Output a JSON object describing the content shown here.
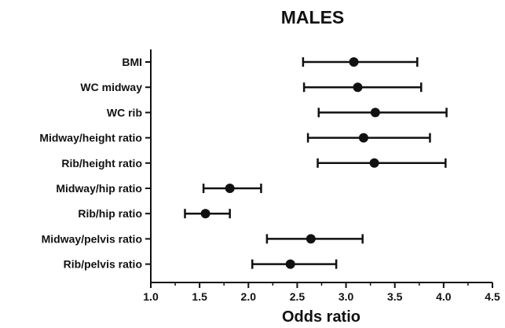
{
  "chart_data": {
    "type": "forest",
    "title": "MALES",
    "xlabel": "Odds ratio",
    "ylabel": "",
    "xlim": [
      1.0,
      4.5
    ],
    "xticks": [
      1.0,
      1.5,
      2.0,
      2.5,
      3.0,
      3.5,
      4.0,
      4.5
    ],
    "xtick_labels": [
      "1.0",
      "1.5",
      "2.0",
      "2.5",
      "3.0",
      "3.5",
      "4.0",
      "4.5"
    ],
    "grid": false,
    "legend": "none",
    "marker_color": "#111111",
    "categories": [
      "BMI",
      "WC midway",
      "WC rib",
      "Midway/height ratio",
      "Rib/height ratio",
      "Midway/hip ratio",
      "Rib/hip ratio",
      "Midway/pelvis ratio",
      "Rib/pelvis ratio"
    ],
    "estimates": [
      3.08,
      3.12,
      3.3,
      3.18,
      3.29,
      1.81,
      1.56,
      2.64,
      2.43
    ],
    "ci_lower": [
      2.56,
      2.57,
      2.72,
      2.61,
      2.71,
      1.54,
      1.35,
      2.19,
      2.04
    ],
    "ci_upper": [
      3.73,
      3.77,
      4.03,
      3.86,
      4.02,
      2.13,
      1.81,
      3.17,
      2.9
    ]
  }
}
